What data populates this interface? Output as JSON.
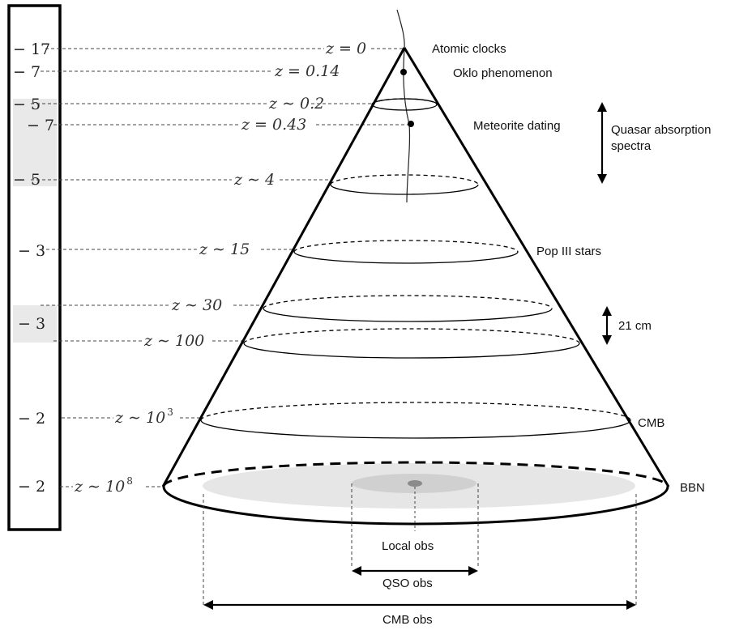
{
  "scale": {
    "labels": [
      "− 17",
      "− 7",
      "− 5",
      "− 7",
      "− 5",
      "− 3",
      "− 3",
      "− 2",
      "− 2"
    ]
  },
  "redshift": {
    "z0": "z = 0",
    "z014": "z = 0.14",
    "z02": "z ∼ 0.2",
    "z043": "z = 0.43",
    "z4": "z ∼ 4",
    "z15": "z ∼ 15",
    "z30": "z ∼ 30",
    "z100": "z ∼ 100",
    "z1e3_base": "z ∼ 10",
    "z1e3_exp": "3",
    "z1e8_base": "z ∼ 10",
    "z1e8_exp": "8"
  },
  "probes": {
    "atomic_clocks": "Atomic clocks",
    "oklo": "Oklo phenomenon",
    "meteorite": "Meteorite dating",
    "quasar_line1": "Quasar absorption",
    "quasar_line2": "spectra",
    "pop3": "Pop III stars",
    "cm21": "21 cm",
    "cmb": "CMB",
    "bbn": "BBN"
  },
  "observations": {
    "local": "Local obs",
    "qso": "QSO obs",
    "cmb": "CMB obs"
  },
  "colors": {
    "line": "#000000",
    "shade_light": "#e6e6e6",
    "shade_mid": "#d0d0d0",
    "local_spot": "#8a8a8a",
    "band_shade": "#e9e9e9"
  }
}
